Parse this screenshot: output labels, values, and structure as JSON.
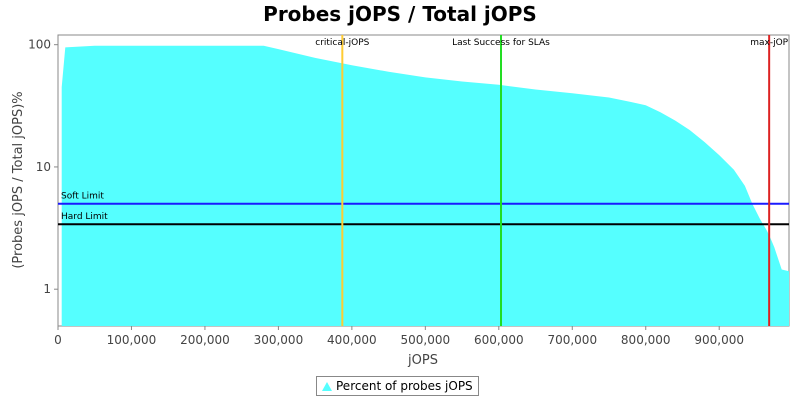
{
  "chart_data": {
    "type": "area",
    "title": "Probes jOPS / Total jOPS",
    "xlabel": "jOPS",
    "ylabel": "(Probes jOPS / Total jOPS)%",
    "xlim": [
      0,
      995000
    ],
    "ylim": [
      0.5,
      120
    ],
    "yscale": "log",
    "x_ticks": [
      0,
      100000,
      200000,
      300000,
      400000,
      500000,
      600000,
      700000,
      800000,
      900000
    ],
    "x_tick_labels": [
      "0",
      "100,000",
      "200,000",
      "300,000",
      "400,000",
      "500,000",
      "600,000",
      "700,000",
      "800,000",
      "900,000"
    ],
    "y_ticks": [
      1,
      10,
      100
    ],
    "y_tick_labels": [
      "1",
      "10",
      "100"
    ],
    "series": [
      {
        "name": "Percent of probes jOPS",
        "color": "#55ffff",
        "points": [
          [
            5000,
            45
          ],
          [
            10000,
            95
          ],
          [
            50000,
            98
          ],
          [
            100000,
            98
          ],
          [
            200000,
            98
          ],
          [
            280000,
            98
          ],
          [
            300000,
            92
          ],
          [
            350000,
            78
          ],
          [
            400000,
            68
          ],
          [
            450000,
            60
          ],
          [
            500000,
            54
          ],
          [
            550000,
            50
          ],
          [
            600000,
            47
          ],
          [
            650000,
            43
          ],
          [
            700000,
            40
          ],
          [
            750000,
            37
          ],
          [
            780000,
            34
          ],
          [
            800000,
            32
          ],
          [
            820000,
            28
          ],
          [
            840000,
            24
          ],
          [
            860000,
            20
          ],
          [
            880000,
            16
          ],
          [
            900000,
            12.5
          ],
          [
            920000,
            9.5
          ],
          [
            935000,
            7
          ],
          [
            945000,
            5
          ],
          [
            955000,
            3.8
          ],
          [
            965000,
            3
          ],
          [
            970000,
            2.6
          ],
          [
            975000,
            2.2
          ],
          [
            985000,
            1.45
          ],
          [
            995000,
            1.4
          ]
        ]
      }
    ],
    "vertical_markers": [
      {
        "label": "critical-jOPS",
        "x": 387000,
        "color": "#ffcc33"
      },
      {
        "label": "Last Success for SLAs",
        "x": 603000,
        "color": "#22dd22"
      },
      {
        "label": "max-jOP",
        "x": 968000,
        "color": "#dd2222"
      }
    ],
    "horizontal_markers": [
      {
        "label": "Soft Limit",
        "y": 5,
        "color": "#1a1aff"
      },
      {
        "label": "Hard Limit",
        "y": 3.4,
        "color": "#000000"
      }
    ],
    "legend": {
      "position": "bottom",
      "entries": [
        "Percent of probes jOPS"
      ]
    }
  }
}
